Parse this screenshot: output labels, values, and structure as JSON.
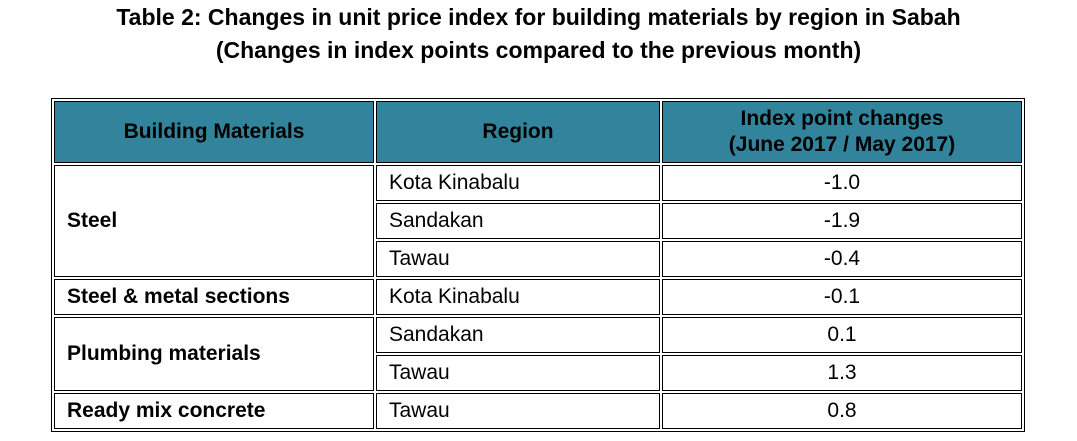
{
  "title": {
    "line1": "Table 2: Changes in unit price index for building materials by region in Sabah",
    "line2": "(Changes in index points compared to the previous month)"
  },
  "table": {
    "headers": [
      "Building Materials",
      "Region",
      [
        "Index point changes",
        "(June 2017 / May 2017)"
      ]
    ],
    "groups": [
      {
        "material": "Steel",
        "rows": [
          {
            "region": "Kota Kinabalu",
            "change": "-1.0"
          },
          {
            "region": "Sandakan",
            "change": "-1.9"
          },
          {
            "region": "Tawau",
            "change": "-0.4"
          }
        ]
      },
      {
        "material": "Steel & metal sections",
        "rows": [
          {
            "region": "Kota Kinabalu",
            "change": "-0.1"
          }
        ]
      },
      {
        "material": "Plumbing materials",
        "rows": [
          {
            "region": "Sandakan",
            "change": "0.1"
          },
          {
            "region": "Tawau",
            "change": "1.3"
          }
        ]
      },
      {
        "material": "Ready mix concrete",
        "rows": [
          {
            "region": "Tawau",
            "change": "0.8"
          }
        ]
      }
    ]
  }
}
